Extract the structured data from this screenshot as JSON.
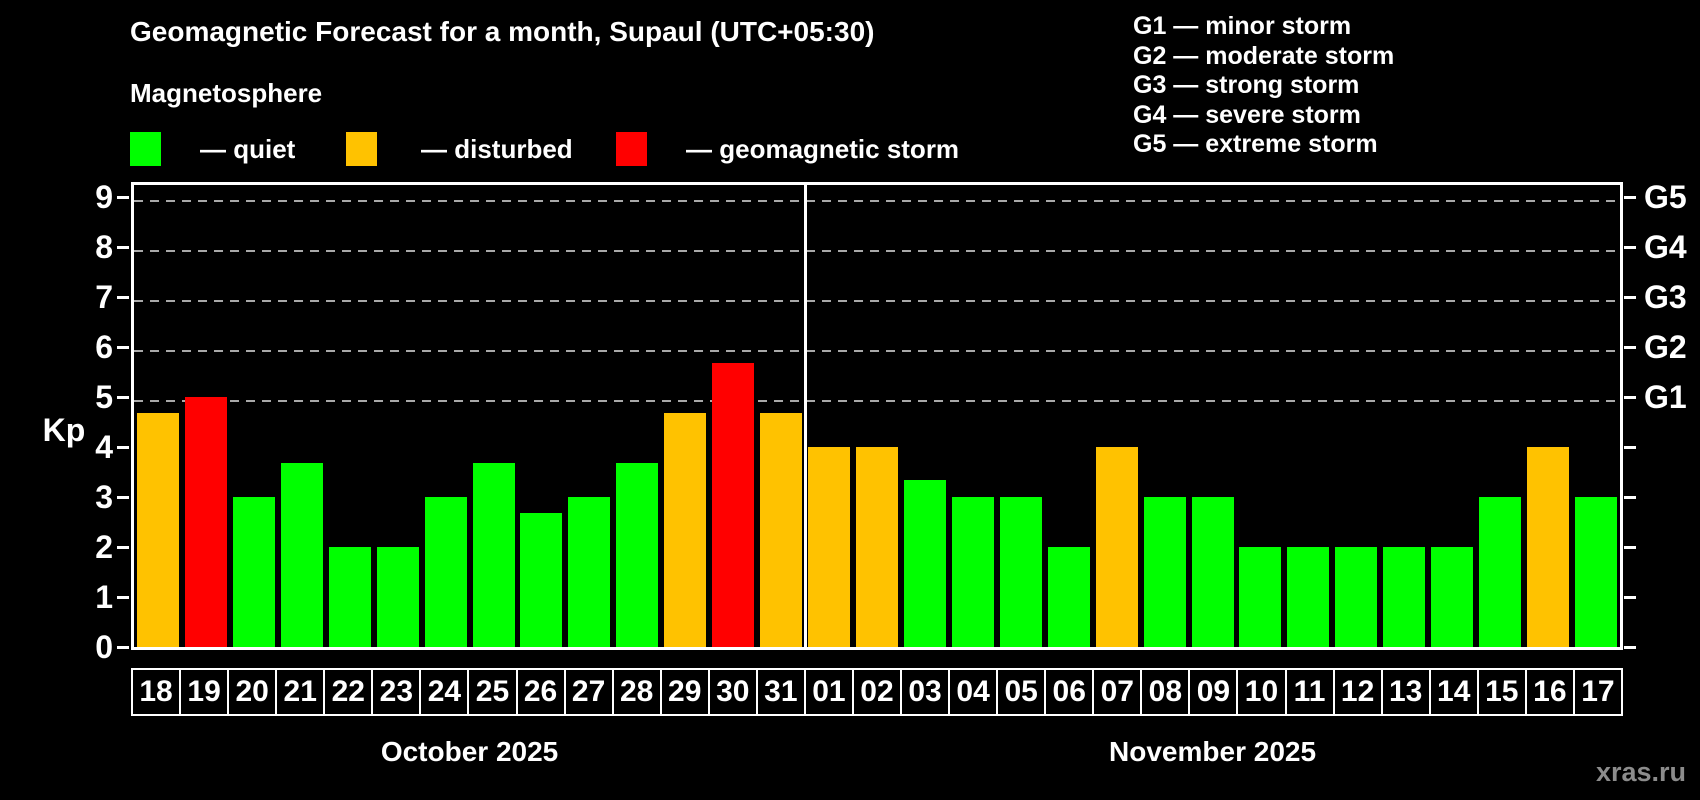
{
  "header": {
    "title": "Geomagnetic Forecast for a month, Supaul (UTC+05:30)",
    "subtitle": "Magnetosphere"
  },
  "legend": {
    "quiet_label": "— quiet",
    "disturbed_label": "— disturbed",
    "storm_label": "— geomagnetic storm"
  },
  "g_legend": [
    "G1 — minor storm",
    "G2 — moderate storm",
    "G3 — strong storm",
    "G4 — severe storm",
    "G5 — extreme storm"
  ],
  "watermark": "xras.ru",
  "colors": {
    "quiet": "#00ff00",
    "disturbed": "#ffc200",
    "storm": "#ff0000",
    "grid": "#a9a9a9",
    "axis": "#ffffff",
    "watermark": "#8c8c8c",
    "background": "#000000"
  },
  "chart_data": {
    "type": "bar",
    "ylabel": "Kp",
    "ylim": [
      0,
      9.36
    ],
    "yticks": [
      0,
      1,
      2,
      3,
      4,
      5,
      6,
      7,
      8,
      9
    ],
    "gridlines_kp": [
      5,
      6,
      7,
      8,
      9
    ],
    "grid": "dashed-horizontal",
    "legend_position": "top-left",
    "right_axis_labels": [
      {
        "kp": 5,
        "label": "G1"
      },
      {
        "kp": 6,
        "label": "G2"
      },
      {
        "kp": 7,
        "label": "G3"
      },
      {
        "kp": 8,
        "label": "G4"
      },
      {
        "kp": 9,
        "label": "G5"
      }
    ],
    "months": [
      {
        "label": "October 2025",
        "days": [
          {
            "date": "18",
            "kp": 4.67,
            "status": "disturbed"
          },
          {
            "date": "19",
            "kp": 5.0,
            "status": "storm"
          },
          {
            "date": "20",
            "kp": 3.0,
            "status": "quiet"
          },
          {
            "date": "21",
            "kp": 3.67,
            "status": "quiet"
          },
          {
            "date": "22",
            "kp": 2.0,
            "status": "quiet"
          },
          {
            "date": "23",
            "kp": 2.0,
            "status": "quiet"
          },
          {
            "date": "24",
            "kp": 3.0,
            "status": "quiet"
          },
          {
            "date": "25",
            "kp": 3.67,
            "status": "quiet"
          },
          {
            "date": "26",
            "kp": 2.67,
            "status": "quiet"
          },
          {
            "date": "27",
            "kp": 3.0,
            "status": "quiet"
          },
          {
            "date": "28",
            "kp": 3.67,
            "status": "quiet"
          },
          {
            "date": "29",
            "kp": 4.67,
            "status": "disturbed"
          },
          {
            "date": "30",
            "kp": 5.67,
            "status": "storm"
          },
          {
            "date": "31",
            "kp": 4.67,
            "status": "disturbed"
          }
        ]
      },
      {
        "label": "November 2025",
        "days": [
          {
            "date": "01",
            "kp": 4.0,
            "status": "disturbed"
          },
          {
            "date": "02",
            "kp": 4.0,
            "status": "disturbed"
          },
          {
            "date": "03",
            "kp": 3.33,
            "status": "quiet"
          },
          {
            "date": "04",
            "kp": 3.0,
            "status": "quiet"
          },
          {
            "date": "05",
            "kp": 3.0,
            "status": "quiet"
          },
          {
            "date": "06",
            "kp": 2.0,
            "status": "quiet"
          },
          {
            "date": "07",
            "kp": 4.0,
            "status": "disturbed"
          },
          {
            "date": "08",
            "kp": 3.0,
            "status": "quiet"
          },
          {
            "date": "09",
            "kp": 3.0,
            "status": "quiet"
          },
          {
            "date": "10",
            "kp": 2.0,
            "status": "quiet"
          },
          {
            "date": "11",
            "kp": 2.0,
            "status": "quiet"
          },
          {
            "date": "12",
            "kp": 2.0,
            "status": "quiet"
          },
          {
            "date": "13",
            "kp": 2.0,
            "status": "quiet"
          },
          {
            "date": "14",
            "kp": 2.0,
            "status": "quiet"
          },
          {
            "date": "15",
            "kp": 3.0,
            "status": "quiet"
          },
          {
            "date": "16",
            "kp": 4.0,
            "status": "disturbed"
          },
          {
            "date": "17",
            "kp": 3.0,
            "status": "quiet"
          }
        ]
      }
    ]
  }
}
